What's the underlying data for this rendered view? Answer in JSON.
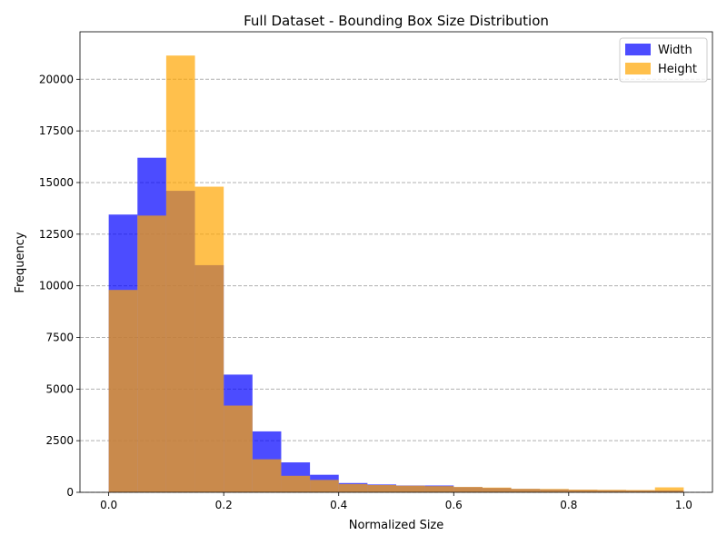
{
  "chart_data": {
    "type": "bar",
    "title": "Full Dataset - Bounding Box Size Distribution",
    "xlabel": "Normalized Size",
    "ylabel": "Frequency",
    "xlim": [
      -0.05,
      1.05
    ],
    "ylim": [
      0,
      22300
    ],
    "bin_edges": [
      0.0,
      0.05,
      0.1,
      0.15,
      0.2,
      0.25,
      0.3,
      0.35,
      0.4,
      0.45,
      0.5,
      0.55,
      0.6,
      0.65,
      0.7,
      0.75,
      0.8,
      0.85,
      0.9,
      0.95,
      1.0
    ],
    "xticks": [
      0.0,
      0.2,
      0.4,
      0.6,
      0.8,
      1.0
    ],
    "xtick_labels": [
      "0.0",
      "0.2",
      "0.4",
      "0.6",
      "0.8",
      "1.0"
    ],
    "yticks": [
      0,
      2500,
      5000,
      7500,
      10000,
      12500,
      15000,
      17500,
      20000
    ],
    "ytick_labels": [
      "0",
      "2500",
      "5000",
      "7500",
      "10000",
      "12500",
      "15000",
      "17500",
      "20000"
    ],
    "grid": "y-dashed",
    "legend_position": "top-right",
    "series": [
      {
        "name": "Width",
        "color": "#0000ff",
        "opacity": 0.7,
        "values": [
          13450,
          16200,
          14600,
          11000,
          5700,
          2950,
          1450,
          850,
          450,
          380,
          330,
          330,
          250,
          210,
          160,
          140,
          110,
          100,
          90,
          90
        ]
      },
      {
        "name": "Height",
        "color": "#ffa500",
        "opacity": 0.7,
        "values": [
          9800,
          13400,
          21150,
          14800,
          4200,
          1600,
          800,
          600,
          400,
          350,
          320,
          300,
          260,
          230,
          170,
          160,
          130,
          120,
          110,
          240
        ]
      }
    ]
  }
}
